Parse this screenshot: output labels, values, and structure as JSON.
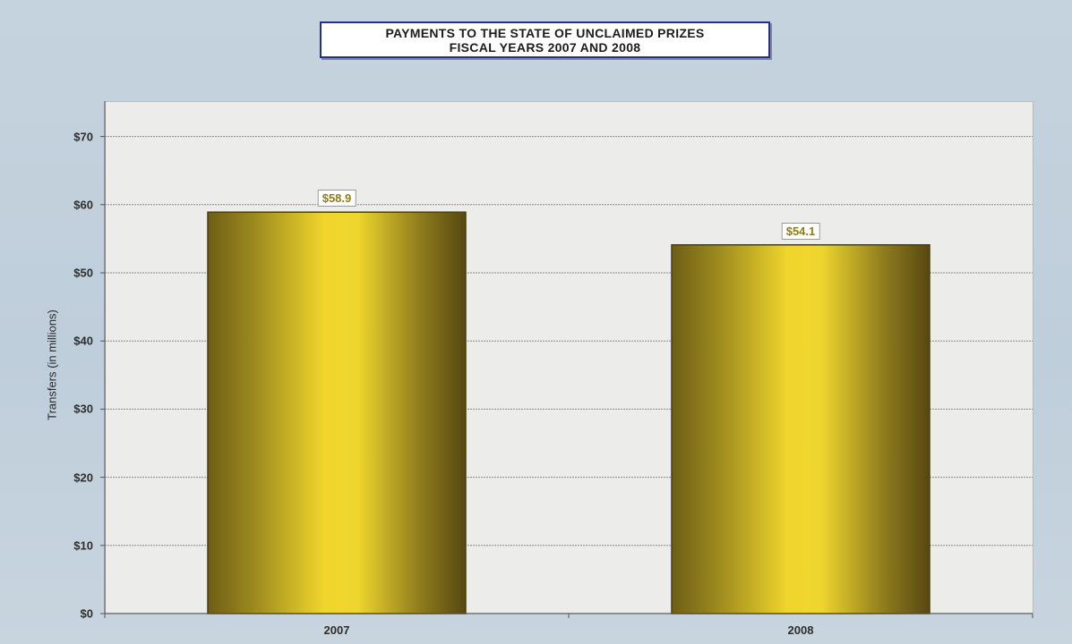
{
  "chart_data": {
    "type": "bar",
    "title": "PAYMENTS TO THE STATE OF UNCLAIMED PRIZES",
    "subtitle": "FISCAL YEARS 2007 AND 2008",
    "ylabel": "Transfers (in millions)",
    "xlabel": "",
    "categories": [
      "2007",
      "2008"
    ],
    "values": [
      58.9,
      54.1
    ],
    "data_labels": [
      "$58.9",
      "$54.1"
    ],
    "ylim": [
      0,
      75
    ],
    "yticks": [
      0,
      10,
      20,
      30,
      40,
      50,
      60,
      70
    ],
    "ytick_labels": [
      "$0",
      "$10",
      "$20",
      "$30",
      "$40",
      "$50",
      "$60",
      "$70"
    ],
    "grid": true,
    "legend": "none",
    "bar_color": "#e8cd2a"
  }
}
